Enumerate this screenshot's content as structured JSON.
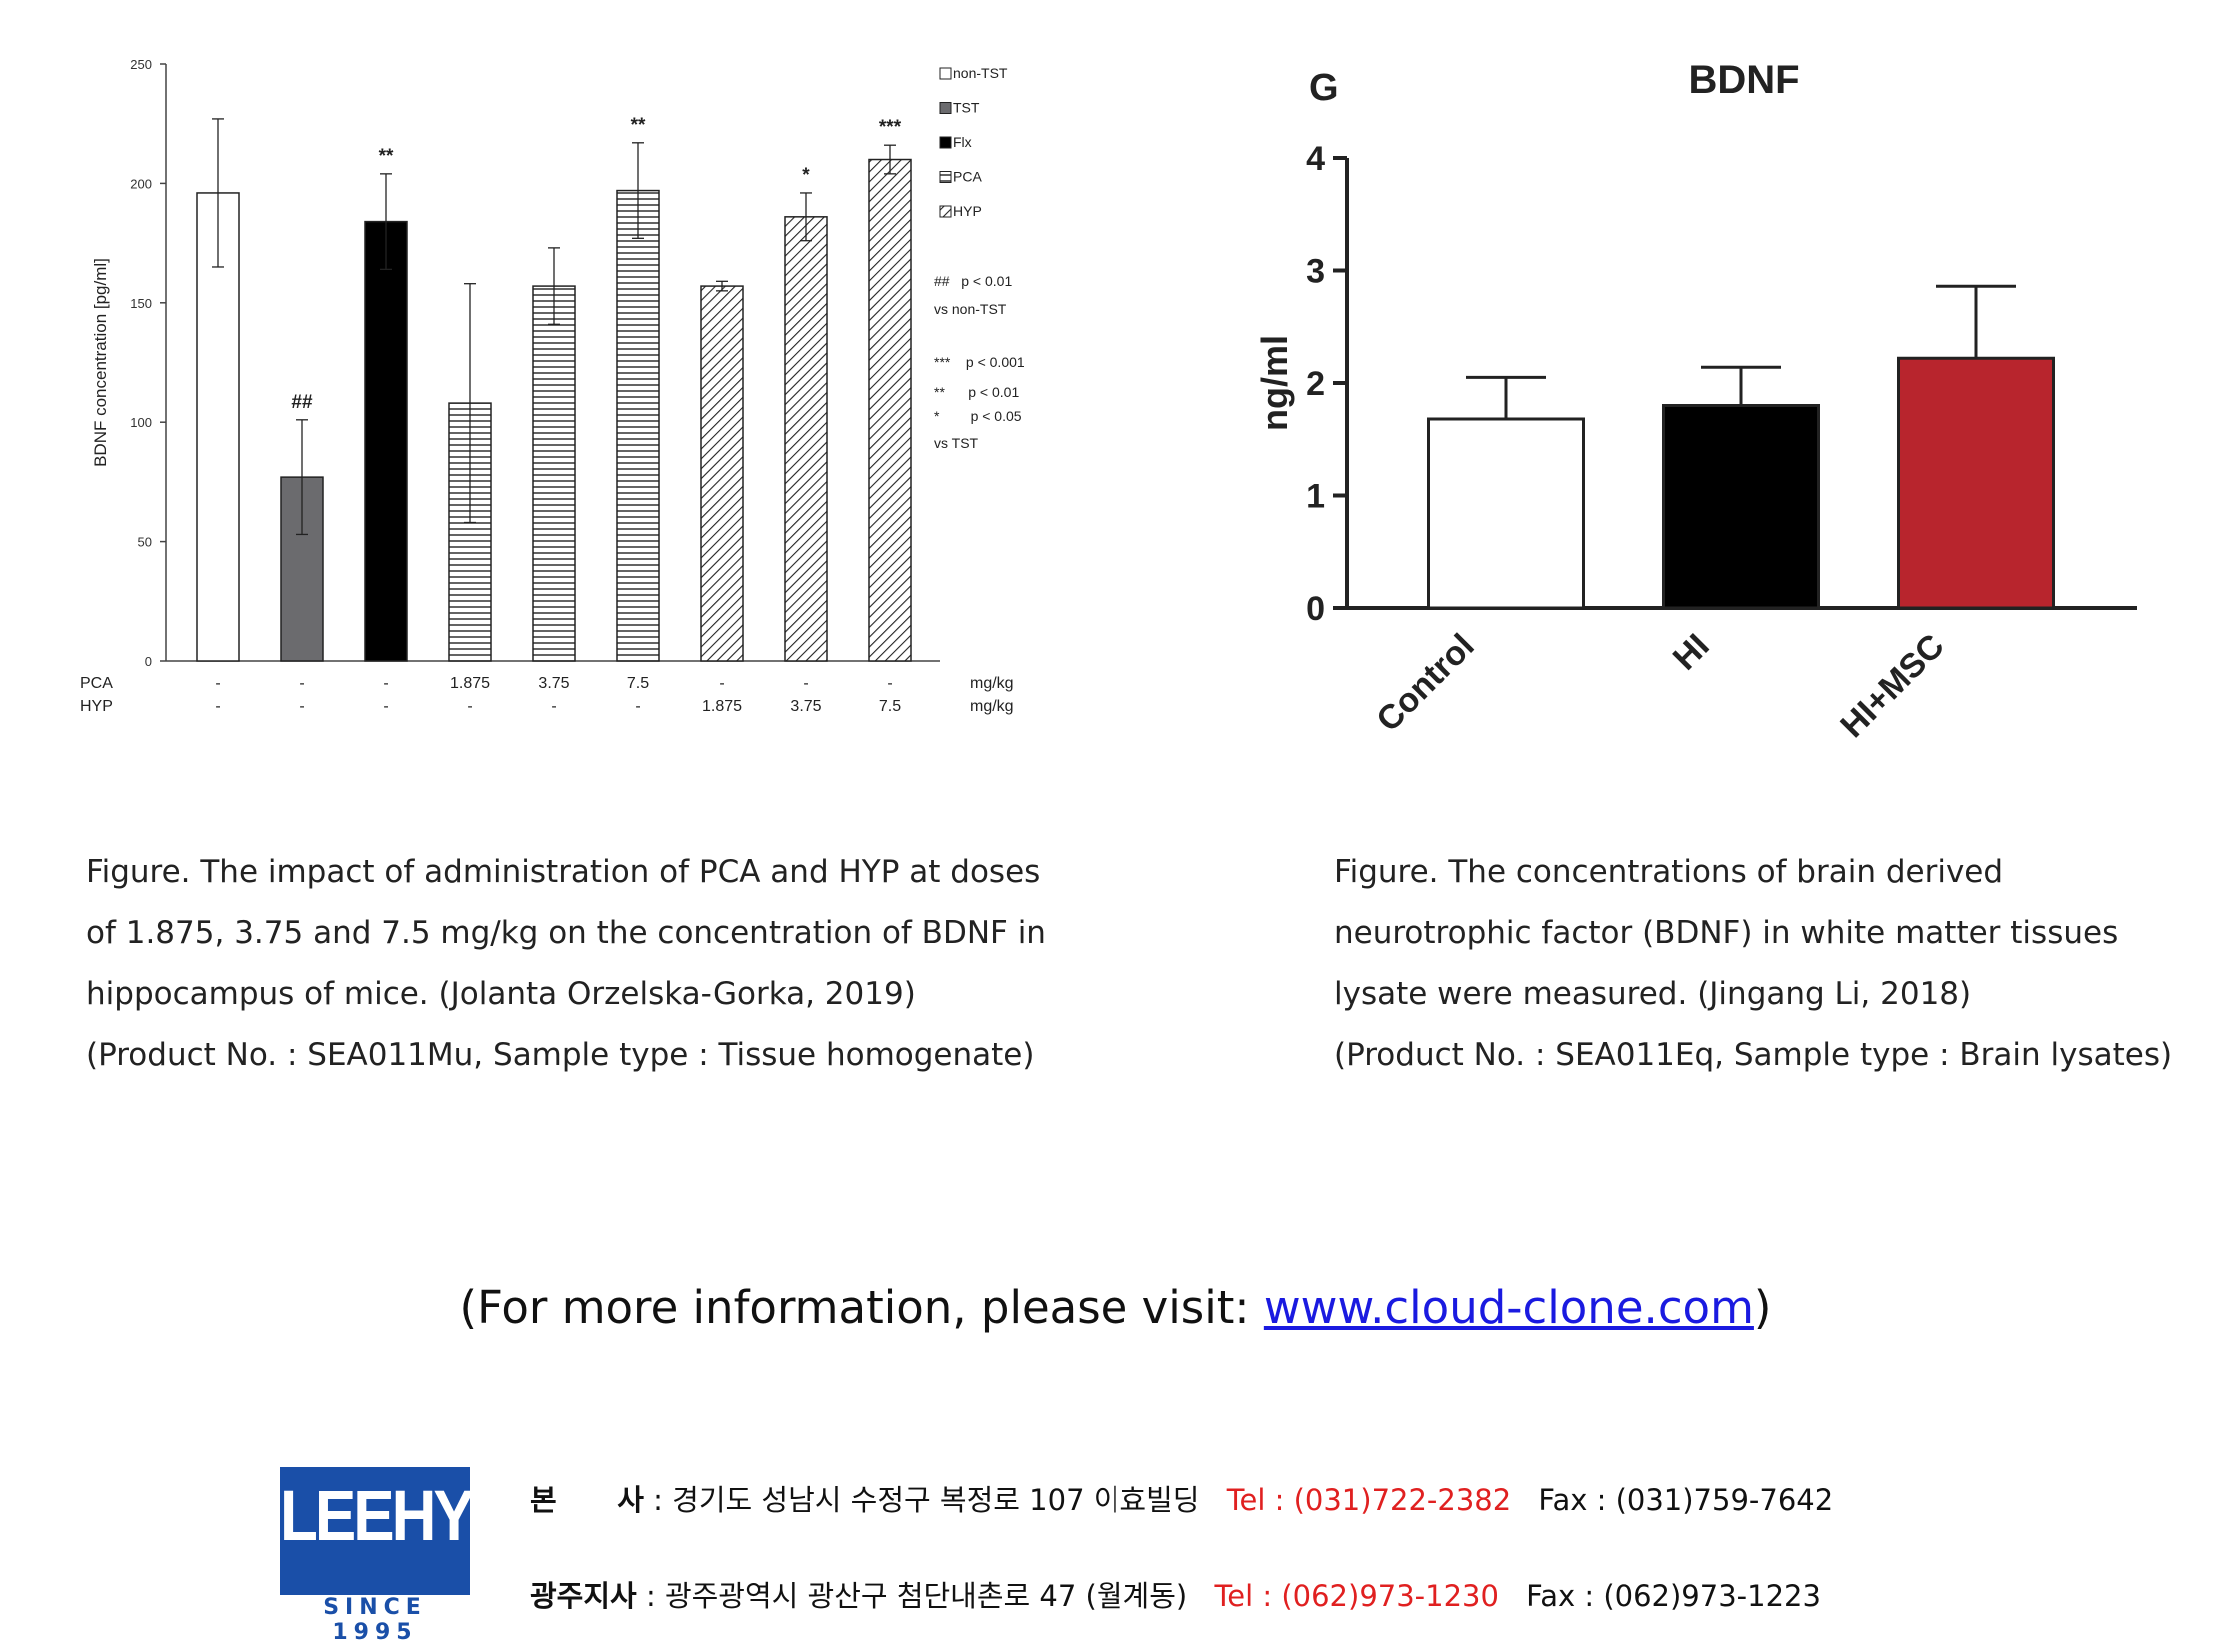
{
  "left_chart": {
    "ylabel": "BDNF concentration [pg/ml]",
    "legend": [
      "non-TST",
      "TST",
      "Flx",
      "PCA",
      "HYP"
    ],
    "notes": [
      "##   p < 0.01",
      "vs non-TST",
      "***    p < 0.001",
      "**      p < 0.01",
      "*        p < 0.05",
      "vs TST"
    ],
    "row_labels": [
      "PCA",
      "HYP"
    ],
    "row_units": [
      "mg/kg",
      "mg/kg"
    ],
    "pca_doses": [
      "-",
      "-",
      "-",
      "1.875",
      "3.75",
      "7.5",
      "-",
      "-",
      "-"
    ],
    "hyp_doses": [
      "-",
      "-",
      "-",
      "-",
      "-",
      "-",
      "1.875",
      "3.75",
      "7.5"
    ],
    "yticks": [
      "0",
      "50",
      "100",
      "150",
      "200",
      "250"
    ]
  },
  "right_chart": {
    "panel_label": "G",
    "title": "BDNF",
    "ylabel": "ng/ml",
    "yticks": [
      "0",
      "1",
      "2",
      "3",
      "4"
    ]
  },
  "chart_data": [
    {
      "type": "bar",
      "title": "",
      "ylabel": "BDNF concentration [pg/ml]",
      "xlabel": "",
      "ylim": [
        0,
        250
      ],
      "categories": [
        "non-TST",
        "TST",
        "Flx",
        "PCA 1.875",
        "PCA 3.75",
        "PCA 7.5",
        "HYP 1.875",
        "HYP 3.75",
        "HYP 7.5"
      ],
      "values": [
        196,
        77,
        184,
        108,
        157,
        197,
        157,
        186,
        210
      ],
      "errors": [
        31,
        24,
        20,
        50,
        16,
        20,
        2,
        10,
        6
      ],
      "group": [
        "non-TST",
        "TST",
        "Flx",
        "PCA",
        "PCA",
        "PCA",
        "HYP",
        "HYP",
        "HYP"
      ],
      "annotations": [
        "",
        "##",
        "**",
        "",
        "",
        "**",
        "",
        "*",
        "***"
      ],
      "legend": [
        "non-TST",
        "TST",
        "Flx",
        "PCA",
        "HYP"
      ],
      "legend_position": "top-right",
      "grid": false
    },
    {
      "type": "bar",
      "title": "BDNF",
      "ylabel": "ng/ml",
      "xlabel": "",
      "ylim": [
        0,
        4
      ],
      "categories": [
        "Control",
        "HI",
        "HI+MSC"
      ],
      "values": [
        1.68,
        1.8,
        2.22
      ],
      "errors": [
        0.37,
        0.34,
        0.64
      ],
      "colors": [
        "#ffffff",
        "#000000",
        "#b8252d"
      ],
      "grid": false
    }
  ],
  "captions": {
    "left": [
      "Figure. The impact of administration of PCA and HYP at doses",
      "of 1.875, 3.75 and 7.5 mg/kg on the concentration of BDNF in",
      "hippocampus of mice. (Jolanta Orzelska-Gorka, 2019)",
      "(Product No. : SEA011Mu, Sample type : Tissue homogenate)"
    ],
    "right": [
      "Figure. The concentrations of brain derived",
      "neurotrophic factor (BDNF) in white matter tissues",
      "lysate were measured. (Jingang Li, 2018)",
      "(Product No. : SEA011Eq, Sample type : Brain lysates)"
    ]
  },
  "more_info": {
    "prefix": "(For more information, please visit: ",
    "link": "www.cloud-clone.com",
    "suffix": ")"
  },
  "footer": {
    "logo_text": "LEEHYO",
    "logo_since": "SINCE 1995",
    "brand_color": "#1a4fa8",
    "hq": {
      "label": "본      사",
      "address": ": 경기도 성남시 수정구 복정로 107 이효빌딩",
      "tel": "Tel : (031)722-2382",
      "fax": "Fax : (031)759-7642"
    },
    "gwangju": {
      "label": "광주지사",
      "address": ": 광주광역시 광산구 첨단내촌로 47 (월계동)",
      "tel": "Tel : (062)973-1230",
      "fax": "Fax : (062)973-1223"
    }
  }
}
